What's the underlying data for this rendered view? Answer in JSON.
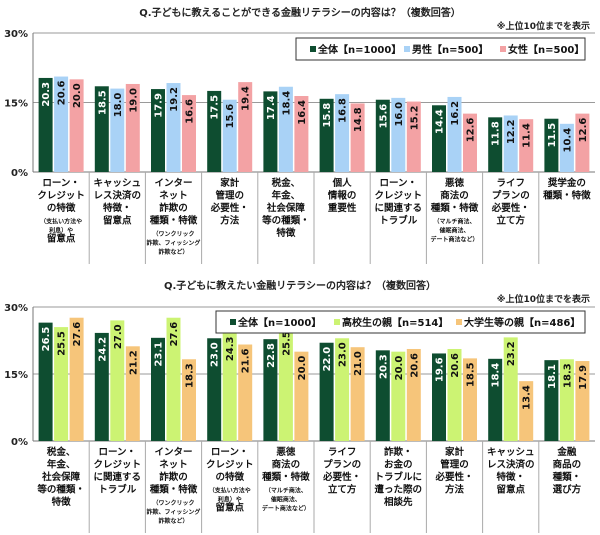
{
  "chart_data": [
    {
      "type": "bar",
      "title": "Q.子どもに教えることができる金融リテラシーの内容は？（複数回答）",
      "note": "※上位10位までを表示",
      "ylim": [
        0,
        30
      ],
      "yticks": [
        "0%",
        "15%",
        "30%"
      ],
      "grid": true,
      "legend_placement": "top-right",
      "categories": [
        {
          "lines": [
            "ローン・",
            "クレジット",
            "の特徴",
            "（支払い方法や",
            "利息）や",
            "留意点"
          ],
          "small": [
            3,
            4
          ]
        },
        {
          "lines": [
            "キャッシュ",
            "レス決済の",
            "特徴・",
            "留意点"
          ],
          "small": []
        },
        {
          "lines": [
            "インター",
            "ネット",
            "詐欺の",
            "種類・特徴",
            "（ワンクリック",
            "詐欺、フィッシング",
            "詐欺など）"
          ],
          "small": [
            4,
            5,
            6
          ]
        },
        {
          "lines": [
            "家計",
            "管理の",
            "必要性・",
            "方法"
          ],
          "small": []
        },
        {
          "lines": [
            "税金、",
            "年金、",
            "社会保障",
            "等の種類・",
            "特徴"
          ],
          "small": []
        },
        {
          "lines": [
            "個人",
            "情報の",
            "重要性"
          ],
          "small": []
        },
        {
          "lines": [
            "ローン・",
            "クレジット",
            "に関連する",
            "トラブル"
          ],
          "small": []
        },
        {
          "lines": [
            "悪徳",
            "商法の",
            "種類・特徴",
            "（マルチ商法、",
            "催眠商法、",
            "デート商法など）"
          ],
          "small": [
            3,
            4,
            5
          ]
        },
        {
          "lines": [
            "ライフ",
            "プランの",
            "必要性・",
            "立て方"
          ],
          "small": []
        },
        {
          "lines": [
            "奨学金の",
            "種類・特徴"
          ],
          "small": []
        }
      ],
      "series": [
        {
          "name": "全体【n=1000】",
          "color": "#0e4d30",
          "values": [
            20.3,
            18.5,
            17.9,
            17.5,
            17.4,
            15.8,
            15.6,
            14.4,
            11.8,
            11.5
          ]
        },
        {
          "name": "男性【n=500】",
          "color": "#a9d2f6",
          "values": [
            20.6,
            18.0,
            19.2,
            15.6,
            18.4,
            16.8,
            16.0,
            16.2,
            12.2,
            10.4
          ]
        },
        {
          "name": "女性【n=500】",
          "color": "#f3a2a4",
          "values": [
            20.0,
            19.0,
            16.6,
            19.4,
            16.4,
            14.8,
            15.2,
            12.6,
            11.4,
            12.6
          ]
        }
      ]
    },
    {
      "type": "bar",
      "title": "Q.子どもに教えたい金融リテラシーの内容は？（複数回答）",
      "note": "※上位10位までを表示",
      "ylim": [
        0,
        30
      ],
      "yticks": [
        "0%",
        "15%",
        "30%"
      ],
      "grid": true,
      "legend_placement": "top-right",
      "categories": [
        {
          "lines": [
            "税金、",
            "年金、",
            "社会保障",
            "等の種類・",
            "特徴"
          ],
          "small": []
        },
        {
          "lines": [
            "ローン・",
            "クレジット",
            "に関連する",
            "トラブル"
          ],
          "small": []
        },
        {
          "lines": [
            "インター",
            "ネット",
            "詐欺の",
            "種類・特徴",
            "（ワンクリック",
            "詐欺、フィッシング",
            "詐欺など）"
          ],
          "small": [
            4,
            5,
            6
          ]
        },
        {
          "lines": [
            "ローン・",
            "クレジット",
            "の特徴",
            "（支払い方法や",
            "利息）や",
            "留意点"
          ],
          "small": [
            3,
            4
          ]
        },
        {
          "lines": [
            "悪徳",
            "商法の",
            "種類・特徴",
            "（マルチ商法、",
            "催眠商法、",
            "デート商法など）"
          ],
          "small": [
            3,
            4,
            5
          ]
        },
        {
          "lines": [
            "ライフ",
            "プランの",
            "必要性・",
            "立て方"
          ],
          "small": []
        },
        {
          "lines": [
            "詐欺・",
            "お金の",
            "トラブルに",
            "遭った際の",
            "相談先"
          ],
          "small": []
        },
        {
          "lines": [
            "家計",
            "管理の",
            "必要性・",
            "方法"
          ],
          "small": []
        },
        {
          "lines": [
            "キャッシュ",
            "レス決済の",
            "特徴・",
            "留意点"
          ],
          "small": []
        },
        {
          "lines": [
            "金融",
            "商品の",
            "種類・",
            "選び方"
          ],
          "small": []
        }
      ],
      "series": [
        {
          "name": "全体【n=1000】",
          "color": "#0e4d30",
          "values": [
            26.5,
            24.2,
            23.1,
            23.0,
            22.8,
            22.0,
            20.3,
            19.6,
            18.4,
            18.1
          ]
        },
        {
          "name": "高校生の親【n=514】",
          "color": "#ccf373",
          "values": [
            25.5,
            27.0,
            27.6,
            24.3,
            25.5,
            23.0,
            20.0,
            20.6,
            23.2,
            18.3
          ]
        },
        {
          "name": "大学生等の親【n=486】",
          "color": "#f6c57a",
          "values": [
            27.6,
            21.2,
            18.3,
            21.6,
            20.0,
            21.0,
            20.6,
            18.5,
            13.4,
            17.9
          ]
        }
      ]
    }
  ]
}
